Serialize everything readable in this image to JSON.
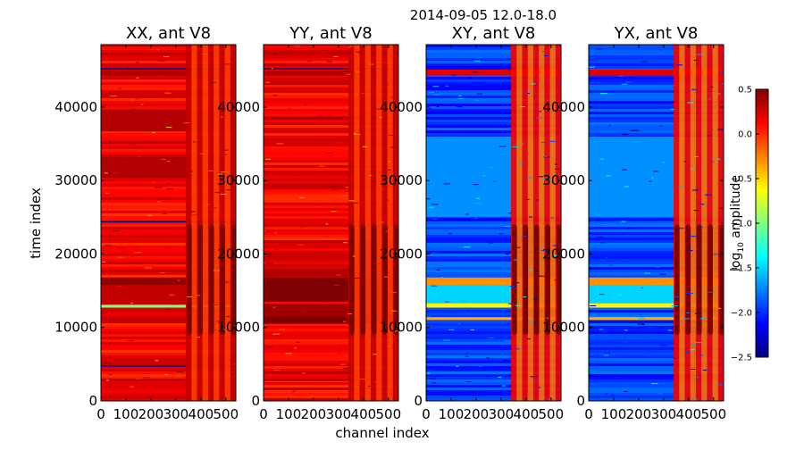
{
  "figure_title": "2014-09-05 12.0-18.0",
  "xlabel": "channel index",
  "ylabel": "time index",
  "colorbar": {
    "label": "log",
    "label_sub": "10",
    "label_rest": " amplitude",
    "min": -2.5,
    "max": 0.5,
    "ticks": [
      "0.5",
      "0.0",
      "−0.5",
      "−1.0",
      "−1.5",
      "−2.0",
      "−2.5"
    ],
    "tick_values": [
      0.5,
      0.0,
      -0.5,
      -1.0,
      -1.5,
      -2.0,
      -2.5
    ],
    "colors": [
      "#00007f",
      "#0000ff",
      "#007fff",
      "#00ffff",
      "#7fff7f",
      "#ffff00",
      "#ff7f00",
      "#ff0000",
      "#7f0000"
    ]
  },
  "chart_data": [
    {
      "type": "heatmap",
      "title": "XX, ant V8",
      "xlim": [
        0,
        540
      ],
      "ylim": [
        0,
        48500
      ],
      "x_ticks": [
        0,
        100,
        200,
        300,
        400,
        500
      ],
      "x_tick_labels": [
        "0",
        "100",
        "200",
        "300",
        "400",
        "500"
      ],
      "y_ticks": [
        0,
        10000,
        20000,
        30000,
        40000
      ],
      "y_tick_labels": [
        "0",
        "10000",
        "20000",
        "30000",
        "40000"
      ],
      "base_level": 0.15,
      "bands": [
        {
          "y0": 2700,
          "y1": 3000,
          "level": 0.35
        },
        {
          "y0": 4650,
          "y1": 4800,
          "level": -2.5
        },
        {
          "y0": 10800,
          "y1": 11400,
          "level": 0.3
        },
        {
          "y0": 12700,
          "y1": 13100,
          "level": -1.0
        },
        {
          "y0": 13100,
          "y1": 15800,
          "level": 0.3
        },
        {
          "y0": 15800,
          "y1": 16800,
          "level": 0.45
        },
        {
          "y0": 24300,
          "y1": 24500,
          "level": -2.5
        },
        {
          "y0": 30300,
          "y1": 33200,
          "level": 0.35
        },
        {
          "y0": 36700,
          "y1": 39700,
          "level": 0.35
        },
        {
          "y0": 44200,
          "y1": 45000,
          "level": 0.35
        },
        {
          "y0": 45100,
          "y1": 45300,
          "level": -2.5
        }
      ],
      "rfi_channels": [
        340,
        540
      ],
      "rfi_level": 0.45
    },
    {
      "type": "heatmap",
      "title": "YY, ant V8",
      "xlim": [
        0,
        540
      ],
      "ylim": [
        0,
        48500
      ],
      "x_ticks": [
        0,
        100,
        200,
        300,
        400,
        500
      ],
      "x_tick_labels": [
        "0",
        "100",
        "200",
        "300",
        "400",
        "500"
      ],
      "y_ticks": [
        0,
        10000,
        20000,
        30000,
        40000
      ],
      "y_tick_labels": [
        "0",
        "10000",
        "20000",
        "30000",
        "40000"
      ],
      "base_level": 0.15,
      "bands": [
        {
          "y0": 2700,
          "y1": 3000,
          "level": 0.35
        },
        {
          "y0": 10500,
          "y1": 11500,
          "level": 0.5
        },
        {
          "y0": 11500,
          "y1": 13200,
          "level": 0.4
        },
        {
          "y0": 13200,
          "y1": 13500,
          "level": 0.1
        },
        {
          "y0": 13500,
          "y1": 16800,
          "level": 0.5
        },
        {
          "y0": 16800,
          "y1": 18000,
          "level": 0.35
        },
        {
          "y0": 38300,
          "y1": 38700,
          "level": 0.4
        },
        {
          "y0": 44200,
          "y1": 45000,
          "level": 0.35
        },
        {
          "y0": 45100,
          "y1": 45300,
          "level": -2.5
        }
      ],
      "rfi_channels": [
        340,
        540
      ],
      "rfi_level": 0.45
    },
    {
      "type": "heatmap",
      "title": "XY, ant V8",
      "xlim": [
        0,
        540
      ],
      "ylim": [
        0,
        48500
      ],
      "x_ticks": [
        0,
        100,
        200,
        300,
        400,
        500
      ],
      "x_tick_labels": [
        "0",
        "100",
        "200",
        "300",
        "400",
        "500"
      ],
      "y_ticks": [
        0,
        10000,
        20000,
        30000,
        40000
      ],
      "y_tick_labels": [
        "0",
        "10000",
        "20000",
        "30000",
        "40000"
      ],
      "base_level": -1.95,
      "bands": [
        {
          "y0": 11000,
          "y1": 11400,
          "level": -0.4
        },
        {
          "y0": 12700,
          "y1": 13300,
          "level": -0.6
        },
        {
          "y0": 13300,
          "y1": 15800,
          "level": -1.5
        },
        {
          "y0": 15800,
          "y1": 16800,
          "level": -0.3
        },
        {
          "y0": 25000,
          "y1": 36000,
          "level": -1.7
        },
        {
          "y0": 44300,
          "y1": 45100,
          "level": 0.2
        }
      ],
      "rfi_channels": [
        340,
        540
      ],
      "rfi_level": 0.3
    },
    {
      "type": "heatmap",
      "title": "YX, ant V8",
      "xlim": [
        0,
        540
      ],
      "ylim": [
        0,
        48500
      ],
      "x_ticks": [
        0,
        100,
        200,
        300,
        400,
        500
      ],
      "x_tick_labels": [
        "0",
        "100",
        "200",
        "300",
        "400",
        "500"
      ],
      "y_ticks": [
        0,
        10000,
        20000,
        30000,
        40000
      ],
      "y_tick_labels": [
        "0",
        "10000",
        "20000",
        "30000",
        "40000"
      ],
      "base_level": -1.95,
      "bands": [
        {
          "y0": 11000,
          "y1": 11400,
          "level": -0.4
        },
        {
          "y0": 12700,
          "y1": 13300,
          "level": -0.6
        },
        {
          "y0": 13300,
          "y1": 15800,
          "level": -1.5
        },
        {
          "y0": 15800,
          "y1": 16800,
          "level": -0.3
        },
        {
          "y0": 25000,
          "y1": 36000,
          "level": -1.7
        },
        {
          "y0": 44300,
          "y1": 45100,
          "level": 0.2
        }
      ],
      "rfi_channels": [
        340,
        540
      ],
      "rfi_level": 0.3
    }
  ]
}
